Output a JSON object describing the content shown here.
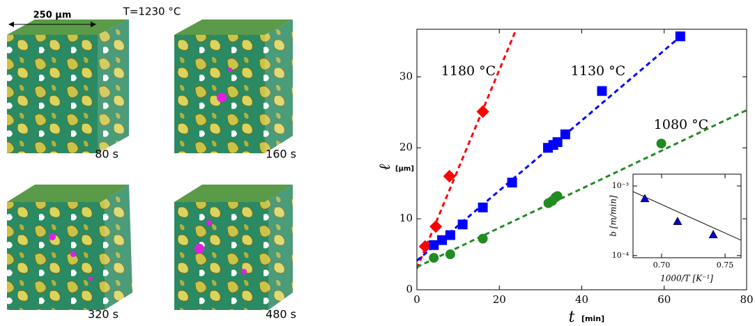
{
  "images": {
    "scale_bar": "250 µm",
    "temperature": "T=1230 °C",
    "times": [
      "80 s",
      "160 s",
      "320 s",
      "480 s"
    ]
  },
  "chart_data": [
    {
      "type": "scatter",
      "x_label": "t",
      "x_unit": "[min]",
      "y_label": "ℓ",
      "y_unit": "[µm]",
      "xlim": [
        0,
        80
      ],
      "xticks": [
        0,
        20,
        40,
        60,
        80
      ],
      "ylim": [
        0,
        36.7
      ],
      "yticks": [
        0,
        10,
        20,
        30
      ],
      "series": [
        {
          "name": "1180 °C",
          "color": "#ff0000",
          "marker": "diamond",
          "x": [
            2.0,
            4.6,
            7.9,
            16.0
          ],
          "values": [
            6.1,
            8.9,
            16.0,
            25.1
          ]
        },
        {
          "name": "1130 °C",
          "color": "#0000ff",
          "marker": "square",
          "x": [
            4.1,
            6.1,
            8.1,
            11.1,
            16.0,
            23.1,
            31.8,
            33.1,
            34.1,
            36.0,
            44.9,
            63.9
          ],
          "values": [
            6.3,
            7.0,
            7.7,
            9.2,
            11.6,
            15.1,
            20.0,
            20.4,
            20.8,
            21.9,
            28.0,
            35.7
          ]
        },
        {
          "name": "1080 °C",
          "color": "#228b22",
          "marker": "circle",
          "x": [
            4.1,
            8.1,
            16.0,
            31.9,
            32.8,
            33.6,
            34.1,
            59.3
          ],
          "values": [
            4.5,
            5.0,
            7.2,
            12.2,
            12.5,
            13.0,
            13.2,
            20.6
          ]
        }
      ],
      "fits": [
        {
          "color": "#ff0000",
          "x": [
            0,
            24.1
          ],
          "values": [
            3.0,
            36.7
          ]
        },
        {
          "color": "#0000ff",
          "x": [
            0,
            64.6
          ],
          "values": [
            4.1,
            36.0
          ]
        },
        {
          "color": "#228b22",
          "x": [
            0,
            80
          ],
          "values": [
            3.2,
            25.3
          ]
        }
      ]
    },
    {
      "type": "scatter",
      "x_label": "1000/T [K⁻¹]",
      "y_label": "b [m/min]",
      "log_y": true,
      "xlim": [
        0.6775,
        0.7626
      ],
      "xticks": [
        {
          "value": 0.7,
          "label": "0.70"
        },
        {
          "value": 0.75,
          "label": "0.75"
        }
      ],
      "ylim": [
        9.3e-05,
        0.00148
      ],
      "yticks": [
        {
          "value": 0.0001,
          "label": "10⁻⁴"
        },
        {
          "value": 0.001,
          "label": "10⁻³"
        }
      ],
      "series": [
        {
          "color": "#0000cc",
          "marker": "triangle",
          "x": [
            0.6868,
            0.7126,
            0.7407
          ],
          "values": [
            0.00066,
            0.00031,
            0.0002
          ]
        }
      ],
      "fits": [
        {
          "color": "#333333",
          "x": [
            0.6775,
            0.7626
          ],
          "values": [
            0.00083,
            0.000166
          ]
        }
      ]
    }
  ]
}
